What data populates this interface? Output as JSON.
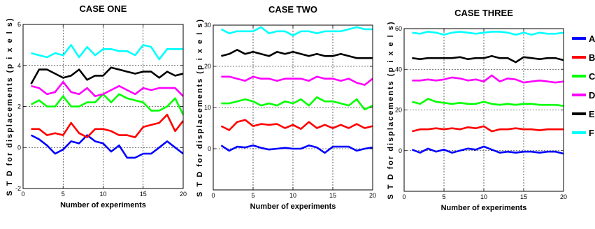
{
  "chart_data": [
    {
      "type": "line",
      "title": "CASE ONE",
      "xlabel": "Number of experiments",
      "ylabel": "S T D  for displacements  (p i x e l s)",
      "xlim": [
        0,
        20
      ],
      "ylim": [
        -2,
        6
      ],
      "xticks": [
        0,
        5,
        10,
        15,
        20
      ],
      "yticks": [
        -2,
        0,
        2,
        4,
        6
      ],
      "grid": true,
      "x": [
        1,
        2,
        3,
        4,
        5,
        6,
        7,
        8,
        9,
        10,
        11,
        12,
        13,
        14,
        15,
        16,
        17,
        18,
        19,
        20
      ],
      "series": [
        {
          "name": "A",
          "color": "#0000ff",
          "values": [
            0.6,
            0.4,
            0.1,
            -0.3,
            -0.1,
            0.3,
            0.2,
            0.6,
            0.3,
            0.2,
            -0.2,
            0.1,
            -0.5,
            -0.5,
            -0.3,
            -0.3,
            0.0,
            0.3,
            0.0,
            -0.3
          ]
        },
        {
          "name": "B",
          "color": "#ff0000",
          "values": [
            0.9,
            0.9,
            0.6,
            0.7,
            0.6,
            1.2,
            0.7,
            0.5,
            0.9,
            0.9,
            0.8,
            0.6,
            0.6,
            0.5,
            1.0,
            1.1,
            1.2,
            1.6,
            0.8,
            1.3
          ]
        },
        {
          "name": "C",
          "color": "#00ff00",
          "values": [
            2.1,
            2.3,
            2.0,
            2.0,
            2.5,
            2.0,
            2.0,
            2.2,
            2.2,
            2.6,
            2.2,
            2.6,
            2.4,
            2.3,
            2.2,
            1.8,
            1.8,
            2.0,
            2.4,
            1.6
          ]
        },
        {
          "name": "D",
          "color": "#ff00ff",
          "values": [
            3.0,
            2.9,
            2.6,
            2.7,
            3.2,
            2.7,
            2.6,
            2.9,
            2.5,
            2.6,
            2.8,
            3.0,
            2.8,
            2.6,
            2.9,
            2.8,
            2.9,
            2.9,
            2.9,
            2.5
          ]
        },
        {
          "name": "E",
          "color": "#000000",
          "values": [
            3.1,
            3.8,
            3.8,
            3.6,
            3.4,
            3.5,
            3.8,
            3.3,
            3.5,
            3.5,
            3.9,
            3.8,
            3.7,
            3.6,
            3.7,
            3.7,
            3.4,
            3.7,
            3.5,
            3.6
          ]
        },
        {
          "name": "F",
          "color": "#00ffff",
          "values": [
            4.6,
            4.5,
            4.4,
            4.6,
            4.5,
            5.0,
            4.4,
            4.9,
            4.5,
            4.8,
            4.8,
            4.7,
            4.7,
            4.5,
            5.0,
            4.9,
            4.3,
            4.8,
            4.8,
            4.8
          ]
        }
      ]
    },
    {
      "type": "line",
      "title": "CASE TWO",
      "xlabel": "Number of experiments",
      "ylabel": "S T D  for displacements  (p i x e l s)",
      "xlim": [
        0,
        20
      ],
      "ylim": [
        -10,
        30
      ],
      "xticks": [
        0,
        5,
        10,
        15,
        20
      ],
      "yticks": [
        0,
        10,
        20,
        30
      ],
      "grid": true,
      "x": [
        1,
        2,
        3,
        4,
        5,
        6,
        7,
        8,
        9,
        10,
        11,
        12,
        13,
        14,
        15,
        16,
        17,
        18,
        19,
        20
      ],
      "series": [
        {
          "name": "A",
          "color": "#0000ff",
          "values": [
            0.8,
            -0.5,
            0.5,
            0.3,
            0.8,
            0.2,
            -0.2,
            0.0,
            0.2,
            0.0,
            0.0,
            0.8,
            0.3,
            -1.0,
            0.5,
            0.5,
            0.5,
            -0.5,
            0.0,
            0.3
          ]
        },
        {
          "name": "B",
          "color": "#ff0000",
          "values": [
            5.5,
            4.5,
            6.5,
            7.0,
            5.5,
            6.0,
            5.8,
            6.0,
            5.0,
            5.8,
            4.8,
            6.5,
            5.0,
            5.8,
            5.0,
            5.8,
            5.0,
            6.0,
            5.0,
            5.5
          ]
        },
        {
          "name": "C",
          "color": "#00ff00",
          "values": [
            11.0,
            11.0,
            11.5,
            12.0,
            11.5,
            10.5,
            11.0,
            10.5,
            11.5,
            11.0,
            12.0,
            10.5,
            12.5,
            11.5,
            11.5,
            11.0,
            10.5,
            12.0,
            9.5,
            10.5
          ]
        },
        {
          "name": "D",
          "color": "#ff00ff",
          "values": [
            17.5,
            17.5,
            17.0,
            16.5,
            17.5,
            17.0,
            17.0,
            16.5,
            17.0,
            17.0,
            17.0,
            16.5,
            17.5,
            17.0,
            17.0,
            16.5,
            17.0,
            16.0,
            15.5,
            17.0
          ]
        },
        {
          "name": "E",
          "color": "#000000",
          "values": [
            22.5,
            23.0,
            24.0,
            23.0,
            23.5,
            23.0,
            22.5,
            23.5,
            23.0,
            23.5,
            23.0,
            22.5,
            23.0,
            22.5,
            22.5,
            23.0,
            22.5,
            22.0,
            22.0,
            22.0
          ]
        },
        {
          "name": "F",
          "color": "#00ffff",
          "values": [
            29.0,
            28.0,
            28.5,
            28.5,
            28.5,
            29.5,
            28.0,
            28.5,
            28.5,
            27.5,
            28.5,
            28.5,
            28.0,
            28.5,
            28.5,
            28.5,
            29.0,
            29.5,
            29.0,
            29.0
          ]
        }
      ]
    },
    {
      "type": "line",
      "title": "CASE THREE",
      "xlabel": "Number of experiments",
      "ylabel": "S T D  for displacements  (p i x e l s)",
      "xlim": [
        0,
        20
      ],
      "ylim": [
        -20,
        60
      ],
      "xticks": [
        0,
        5,
        10,
        15,
        20
      ],
      "yticks": [
        0,
        20,
        40,
        60
      ],
      "grid": true,
      "x": [
        1,
        2,
        3,
        4,
        5,
        6,
        7,
        8,
        9,
        10,
        11,
        12,
        13,
        14,
        15,
        16,
        17,
        18,
        19,
        20
      ],
      "series": [
        {
          "name": "A",
          "color": "#0000ff",
          "values": [
            0.5,
            -1.0,
            1.0,
            -0.5,
            0.5,
            -1.0,
            0.0,
            1.0,
            0.5,
            2.0,
            0.5,
            -1.0,
            -0.5,
            -1.0,
            -0.5,
            -0.5,
            -1.0,
            -0.5,
            -0.5,
            -1.5
          ]
        },
        {
          "name": "B",
          "color": "#ff0000",
          "values": [
            9.5,
            10.5,
            10.5,
            11.0,
            10.5,
            11.0,
            10.5,
            11.5,
            11.0,
            12.0,
            9.5,
            10.5,
            10.5,
            11.0,
            10.5,
            10.5,
            10.0,
            10.5,
            10.5,
            10.5
          ]
        },
        {
          "name": "C",
          "color": "#00ff00",
          "values": [
            24.0,
            23.0,
            25.5,
            24.0,
            23.5,
            23.0,
            23.5,
            23.0,
            23.0,
            24.0,
            23.0,
            22.5,
            23.0,
            22.5,
            23.0,
            23.0,
            22.5,
            22.5,
            22.5,
            22.0
          ]
        },
        {
          "name": "D",
          "color": "#ff00ff",
          "values": [
            34.5,
            34.5,
            35.0,
            34.5,
            35.0,
            36.0,
            35.5,
            34.5,
            35.0,
            34.0,
            37.0,
            34.0,
            35.5,
            35.0,
            33.5,
            34.0,
            34.5,
            34.0,
            33.5,
            34.0
          ]
        },
        {
          "name": "E",
          "color": "#000000",
          "values": [
            45.5,
            45.0,
            45.5,
            45.5,
            45.5,
            45.5,
            46.0,
            45.0,
            45.5,
            45.5,
            46.5,
            45.5,
            45.5,
            43.5,
            46.0,
            45.5,
            45.0,
            45.5,
            45.5,
            44.5
          ]
        },
        {
          "name": "F",
          "color": "#00ffff",
          "values": [
            58.0,
            57.5,
            58.5,
            58.0,
            57.0,
            58.0,
            58.5,
            58.0,
            57.5,
            58.0,
            58.5,
            58.5,
            58.0,
            57.0,
            58.0,
            57.0,
            58.0,
            57.5,
            57.5,
            58.0
          ]
        }
      ]
    }
  ],
  "legend": {
    "placement": "right",
    "entries": [
      {
        "label": "A",
        "color": "#0000ff"
      },
      {
        "label": "B",
        "color": "#ff0000"
      },
      {
        "label": "C",
        "color": "#00ff00"
      },
      {
        "label": "D",
        "color": "#ff00ff"
      },
      {
        "label": "E",
        "color": "#000000"
      },
      {
        "label": "F",
        "color": "#00ffff"
      }
    ]
  }
}
